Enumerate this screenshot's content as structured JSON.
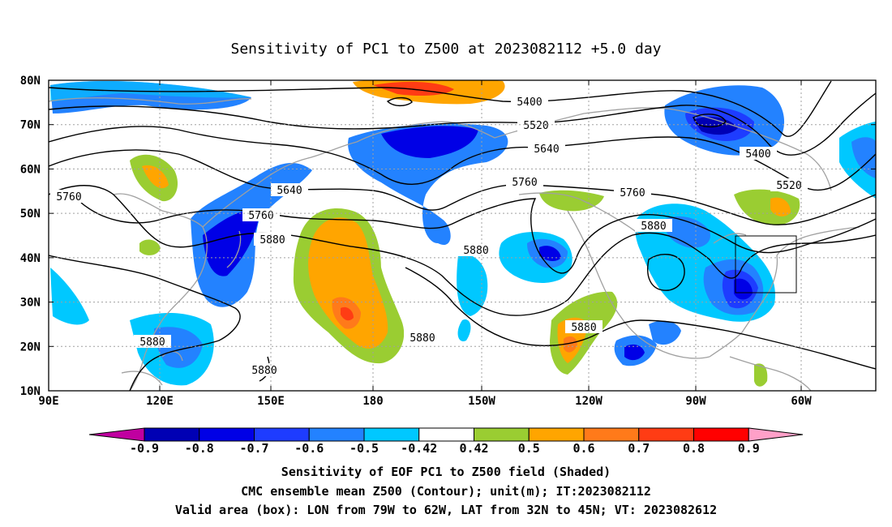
{
  "title": "Sensitivity of PC1 to Z500 at 2023082112 +5.0 day",
  "captions": {
    "line1": "Sensitivity of EOF PC1 to Z500 field (Shaded)",
    "line2": "CMC ensemble mean Z500 (Contour); unit(m); IT:2023082112",
    "line3": "Valid area (box): LON from 79W to 62W, LAT from 32N to 45N; VT: 2023082612"
  },
  "lat_labels": [
    "80N",
    "70N",
    "60N",
    "50N",
    "40N",
    "30N",
    "20N",
    "10N"
  ],
  "lon_labels": [
    "90E",
    "120E",
    "150E",
    "180",
    "150W",
    "120W",
    "90W",
    "60W"
  ],
  "colorbar": {
    "labels": [
      "-0.9",
      "-0.8",
      "-0.7",
      "-0.6",
      "-0.5",
      "-0.42",
      "0.42",
      "0.5",
      "0.6",
      "0.7",
      "0.8",
      "0.9"
    ],
    "colors": [
      "#c000a0",
      "#0000b4",
      "#0000e6",
      "#1e3cff",
      "#2382ff",
      "#00c8ff",
      "#ffffff",
      "#9acd32",
      "#ffa500",
      "#ff7a1a",
      "#ff3c14",
      "#ff0000",
      "#ffa0c8"
    ]
  },
  "contour_labels": [
    "5400",
    "5520",
    "5640",
    "5760",
    "5880"
  ],
  "valid_box": {
    "lon_west": "79W",
    "lon_east": "62W",
    "lat_south": "32N",
    "lat_north": "45N"
  }
}
